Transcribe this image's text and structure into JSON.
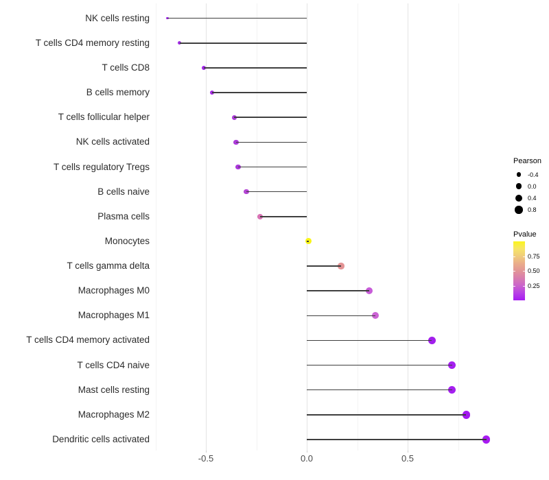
{
  "chart_data": {
    "type": "scatter",
    "variant": "lollipop",
    "title": "",
    "xlabel": "",
    "ylabel": "",
    "xlim": [
      -0.77,
      0.96
    ],
    "x_major_ticks": [
      -0.5,
      0.0,
      0.5
    ],
    "x_tick_labels": [
      "-0.5",
      "0.0",
      "0.5"
    ],
    "x_minor_gridlines": [
      -0.75,
      -0.25,
      0.25,
      0.75
    ],
    "grid": true,
    "background": "#ffffff",
    "stem_color": "#3e3e3e",
    "categories": [
      "NK cells resting",
      "T cells CD4 memory resting",
      "T cells CD8",
      "B cells memory",
      "T cells follicular helper",
      "NK cells activated",
      "T cells regulatory  Tregs",
      "B cells naive",
      "Plasma cells",
      "Monocytes",
      "T cells gamma delta",
      "Macrophages M0",
      "Macrophages M1",
      "T cells CD4 memory activated",
      "T cells CD4 naive",
      "Mast cells resting",
      "Macrophages M2",
      "Dendritic cells activated"
    ],
    "points": [
      {
        "label": "NK cells resting",
        "pearson": -0.69,
        "pvalue": 0.03,
        "color": "#a124ec"
      },
      {
        "label": "T cells CD4 memory resting",
        "pearson": -0.63,
        "pvalue": 0.04,
        "color": "#a02be4"
      },
      {
        "label": "T cells CD8",
        "pearson": -0.51,
        "pvalue": 0.05,
        "color": "#a325ea"
      },
      {
        "label": "B cells memory",
        "pearson": -0.47,
        "pvalue": 0.06,
        "color": "#a52be3"
      },
      {
        "label": "T cells follicular helper",
        "pearson": -0.36,
        "pvalue": 0.1,
        "color": "#ac3bd9"
      },
      {
        "label": "NK cells activated",
        "pearson": -0.35,
        "pvalue": 0.1,
        "color": "#ac3bd9"
      },
      {
        "label": "T cells regulatory  Tregs",
        "pearson": -0.34,
        "pvalue": 0.1,
        "color": "#ab38db"
      },
      {
        "label": "B cells naive",
        "pearson": -0.3,
        "pvalue": 0.15,
        "color": "#b445d4"
      },
      {
        "label": "Plasma cells",
        "pearson": -0.23,
        "pvalue": 0.4,
        "color": "#d973b5"
      },
      {
        "label": "Monocytes",
        "pearson": 0.01,
        "pvalue": 0.97,
        "color": "#f8f416"
      },
      {
        "label": "T cells gamma delta",
        "pearson": 0.17,
        "pvalue": 0.55,
        "color": "#e39394"
      },
      {
        "label": "Macrophages M0",
        "pearson": 0.31,
        "pvalue": 0.28,
        "color": "#c75cd8"
      },
      {
        "label": "Macrophages M1",
        "pearson": 0.34,
        "pvalue": 0.27,
        "color": "#cb63d4"
      },
      {
        "label": "T cells CD4 memory activated",
        "pearson": 0.62,
        "pvalue": 0.02,
        "color": "#a21fec"
      },
      {
        "label": "T cells CD4 naive",
        "pearson": 0.72,
        "pvalue": 0.01,
        "color": "#a51ff0"
      },
      {
        "label": "Mast cells resting",
        "pearson": 0.72,
        "pvalue": 0.01,
        "color": "#a51ff0"
      },
      {
        "label": "Macrophages M2",
        "pearson": 0.79,
        "pvalue": 0.01,
        "color": "#a318f0"
      },
      {
        "label": "Dendritic cells activated",
        "pearson": 0.89,
        "pvalue": 0.005,
        "color": "#a81af2"
      }
    ],
    "legend": {
      "size": {
        "title": "Pearson",
        "entries": [
          {
            "label": "-0.4",
            "value": -0.4
          },
          {
            "label": "0.0",
            "value": 0.0
          },
          {
            "label": "0.4",
            "value": 0.4
          },
          {
            "label": "0.8",
            "value": 0.8
          }
        ],
        "dot_color": "#000000"
      },
      "colorbar": {
        "title": "Pvalue",
        "tick_labels": [
          "0.75",
          "0.50",
          "0.25"
        ],
        "tick_fracs_from_top": [
          0.25,
          0.5,
          0.75
        ],
        "gradient_top_to_bottom": [
          "#fbf51c",
          "#f7e566",
          "#f0cc7c",
          "#eaad8a",
          "#e29597",
          "#d87daf",
          "#ca64cc",
          "#b841e5",
          "#a71bf2"
        ],
        "high_color": "#fbf51c",
        "low_color": "#a71bf2"
      }
    }
  }
}
